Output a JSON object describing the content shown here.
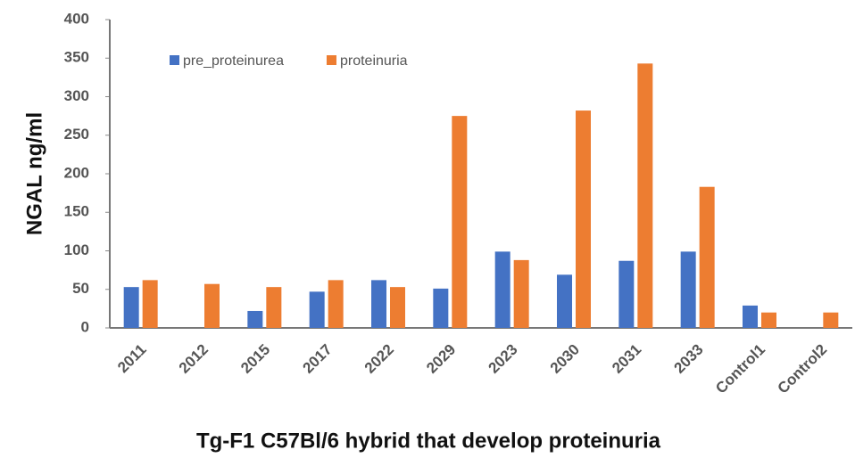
{
  "chart_data": {
    "type": "bar",
    "xlabel": "Tg-F1 C57Bl/6 hybrid that develop proteinuria",
    "ylabel": "NGAL ng/ml",
    "categories": [
      "2011",
      "2012",
      "2015",
      "2017",
      "2022",
      "2029",
      "2023",
      "2030",
      "2031",
      "2033",
      "Control1",
      "Control2"
    ],
    "series": [
      {
        "name": "pre_proteinurea",
        "color": "#4472c4",
        "values": [
          53,
          0,
          22,
          47,
          62,
          51,
          99,
          69,
          87,
          99,
          29,
          0
        ]
      },
      {
        "name": "proteinuria",
        "color": "#ed7d31",
        "values": [
          62,
          57,
          53,
          62,
          53,
          275,
          88,
          282,
          343,
          183,
          20,
          20
        ]
      }
    ],
    "ylim": [
      0,
      400
    ],
    "yticks": [
      0,
      50,
      100,
      150,
      200,
      250,
      300,
      350,
      400
    ],
    "grid": false,
    "legend": "top-left"
  }
}
